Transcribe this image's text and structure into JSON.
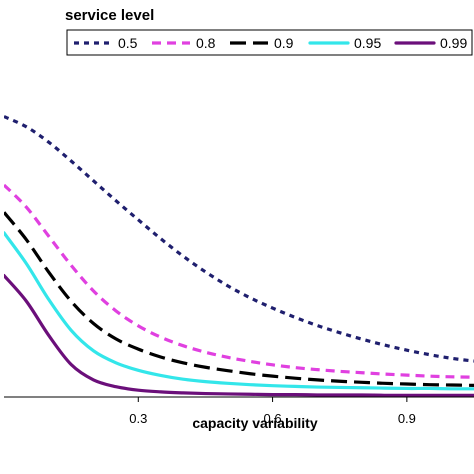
{
  "chart_data": {
    "type": "line",
    "legend_title": "service level",
    "xlabel": "capacity variability",
    "ylabel": "",
    "xlim": [
      0.0,
      1.05
    ],
    "ylim": [
      0,
      1
    ],
    "xticks": [
      "0.3",
      "0.6",
      "0.9"
    ],
    "xtick_values": [
      0.3,
      0.6,
      0.9
    ],
    "grid": false,
    "legend_position": "top",
    "series": [
      {
        "name": "0.5",
        "color": "#1f1f6e",
        "style": "dotted",
        "x": [
          0.0,
          0.05,
          0.1,
          0.15,
          0.2,
          0.25,
          0.3,
          0.35,
          0.4,
          0.45,
          0.5,
          0.55,
          0.6,
          0.65,
          0.7,
          0.75,
          0.8,
          0.85,
          0.9,
          0.95,
          1.0,
          1.05
        ],
        "values": [
          0.82,
          0.79,
          0.745,
          0.69,
          0.632,
          0.574,
          0.518,
          0.463,
          0.412,
          0.366,
          0.325,
          0.29,
          0.26,
          0.233,
          0.209,
          0.188,
          0.169,
          0.152,
          0.137,
          0.124,
          0.113,
          0.105
        ]
      },
      {
        "name": "0.8",
        "color": "#e040e0",
        "style": "dashed",
        "x": [
          0.0,
          0.05,
          0.1,
          0.15,
          0.2,
          0.25,
          0.3,
          0.35,
          0.4,
          0.45,
          0.5,
          0.55,
          0.6,
          0.65,
          0.7,
          0.75,
          0.8,
          0.85,
          0.9,
          0.95,
          1.0,
          1.05
        ],
        "values": [
          0.62,
          0.555,
          0.47,
          0.385,
          0.31,
          0.252,
          0.208,
          0.175,
          0.15,
          0.131,
          0.116,
          0.104,
          0.094,
          0.086,
          0.08,
          0.075,
          0.071,
          0.067,
          0.064,
          0.061,
          0.059,
          0.058
        ]
      },
      {
        "name": "0.9",
        "color": "#000000",
        "style": "longdash",
        "x": [
          0.0,
          0.05,
          0.1,
          0.15,
          0.2,
          0.25,
          0.3,
          0.35,
          0.4,
          0.45,
          0.5,
          0.55,
          0.6,
          0.65,
          0.7,
          0.75,
          0.8,
          0.85,
          0.9,
          0.95,
          1.0,
          1.05
        ],
        "values": [
          0.54,
          0.46,
          0.365,
          0.28,
          0.215,
          0.17,
          0.14,
          0.117,
          0.1,
          0.087,
          0.077,
          0.068,
          0.061,
          0.055,
          0.05,
          0.046,
          0.043,
          0.04,
          0.038,
          0.036,
          0.035,
          0.034
        ]
      },
      {
        "name": "0.95",
        "color": "#33e6ea",
        "style": "solid",
        "x": [
          0.0,
          0.05,
          0.1,
          0.15,
          0.2,
          0.25,
          0.3,
          0.35,
          0.4,
          0.45,
          0.5,
          0.55,
          0.6,
          0.65,
          0.7,
          0.75,
          0.8,
          0.85,
          0.9,
          0.95,
          1.0,
          1.05
        ],
        "values": [
          0.48,
          0.39,
          0.285,
          0.195,
          0.135,
          0.1,
          0.078,
          0.063,
          0.052,
          0.045,
          0.04,
          0.036,
          0.033,
          0.031,
          0.029,
          0.028,
          0.027,
          0.026,
          0.025,
          0.025,
          0.024,
          0.024
        ]
      },
      {
        "name": "0.99",
        "color": "#6b0f7a",
        "style": "solid",
        "x": [
          0.0,
          0.05,
          0.1,
          0.15,
          0.2,
          0.25,
          0.3,
          0.35,
          0.4,
          0.45,
          0.5,
          0.55,
          0.6,
          0.65,
          0.7,
          0.75,
          0.8,
          0.85,
          0.9,
          0.95,
          1.0,
          1.05
        ],
        "values": [
          0.355,
          0.28,
          0.18,
          0.095,
          0.05,
          0.03,
          0.02,
          0.015,
          0.012,
          0.01,
          0.009,
          0.008,
          0.007,
          0.007,
          0.006,
          0.006,
          0.006,
          0.005,
          0.005,
          0.005,
          0.005,
          0.005
        ]
      }
    ]
  }
}
